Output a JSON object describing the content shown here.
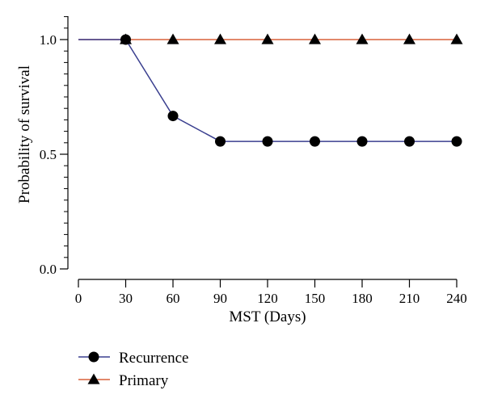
{
  "chart_data": {
    "type": "line",
    "title": "",
    "xlabel": "MST (Days)",
    "ylabel": "Probability of survival",
    "xlim": [
      0,
      240
    ],
    "ylim": [
      0,
      1.0
    ],
    "x_ticks": [
      0,
      30,
      60,
      90,
      120,
      150,
      180,
      210,
      240
    ],
    "x_tick_labels": [
      "0",
      "30",
      "60",
      "90",
      "120",
      "150",
      "180",
      "210",
      "240"
    ],
    "y_ticks": [
      0,
      0.5,
      1.0
    ],
    "y_tick_labels": [
      "0.0",
      "0.5",
      "1.0"
    ],
    "grid": false,
    "legend_position": "bottom-left",
    "series": [
      {
        "name": "Recurrence",
        "marker": "circle",
        "color": "#3a3f8f",
        "x": [
          30,
          60,
          90,
          120,
          150,
          180,
          210,
          240
        ],
        "y": [
          1.0,
          0.667,
          0.556,
          0.556,
          0.556,
          0.556,
          0.556,
          0.556
        ]
      },
      {
        "name": "Primary",
        "marker": "triangle",
        "color": "#d9603a",
        "x": [
          30,
          60,
          90,
          120,
          150,
          180,
          210,
          240
        ],
        "y": [
          1.0,
          1.0,
          1.0,
          1.0,
          1.0,
          1.0,
          1.0,
          1.0
        ]
      }
    ]
  }
}
